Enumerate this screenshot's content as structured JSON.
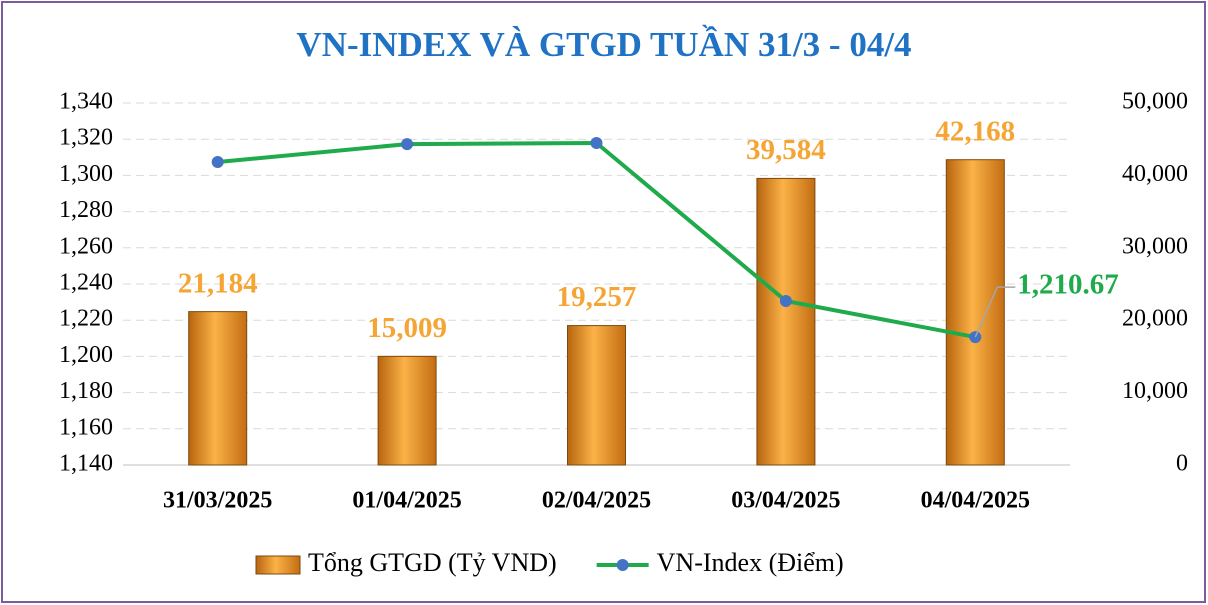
{
  "chart_data": {
    "type": "bar_line",
    "title": "VN-INDEX VÀ GTGD TUẦN 31/3 -  04/4",
    "categories": [
      "31/03/2025",
      "01/04/2025",
      "02/04/2025",
      "03/04/2025",
      "04/04/2025"
    ],
    "series": [
      {
        "name": "Tổng GTGD (Tỷ VND)",
        "type": "bar",
        "axis": "y2",
        "color": "#f4a533",
        "values": [
          21184,
          15009,
          19257,
          39584,
          42168
        ],
        "value_labels": [
          "21,184",
          "15,009",
          "19,257",
          "39,584",
          "42,168"
        ]
      },
      {
        "name": "VN-Index (Điểm)",
        "type": "line",
        "axis": "y",
        "color": "#1faa4b",
        "marker_color": "#4472c4",
        "values": [
          1307.4,
          1317.3,
          1317.9,
          1230.6,
          1210.67
        ],
        "value_labels": [
          null,
          null,
          null,
          null,
          "1,210.67"
        ]
      }
    ],
    "ylim": [
      1140,
      1340
    ],
    "yticks": [
      {
        "value": 1140,
        "label": "1,140"
      },
      {
        "value": 1160,
        "label": "1,160"
      },
      {
        "value": 1180,
        "label": "1,180"
      },
      {
        "value": 1200,
        "label": "1,200"
      },
      {
        "value": 1220,
        "label": "1,220"
      },
      {
        "value": 1240,
        "label": "1,240"
      },
      {
        "value": 1260,
        "label": "1,260"
      },
      {
        "value": 1280,
        "label": "1,280"
      },
      {
        "value": 1300,
        "label": "1,300"
      },
      {
        "value": 1320,
        "label": "1,320"
      },
      {
        "value": 1340,
        "label": "1,340"
      }
    ],
    "y2lim": [
      0,
      50000
    ],
    "y2ticks": [
      0,
      {
        "value": 10000,
        "label": "10,000"
      },
      {
        "value": 20000,
        "label": "20,000"
      },
      {
        "value": 30000,
        "label": "30,000"
      },
      {
        "value": 40000,
        "label": "40,000"
      },
      {
        "value": 50000,
        "label": "50,000"
      }
    ],
    "grid": true,
    "legend": "bottom"
  }
}
